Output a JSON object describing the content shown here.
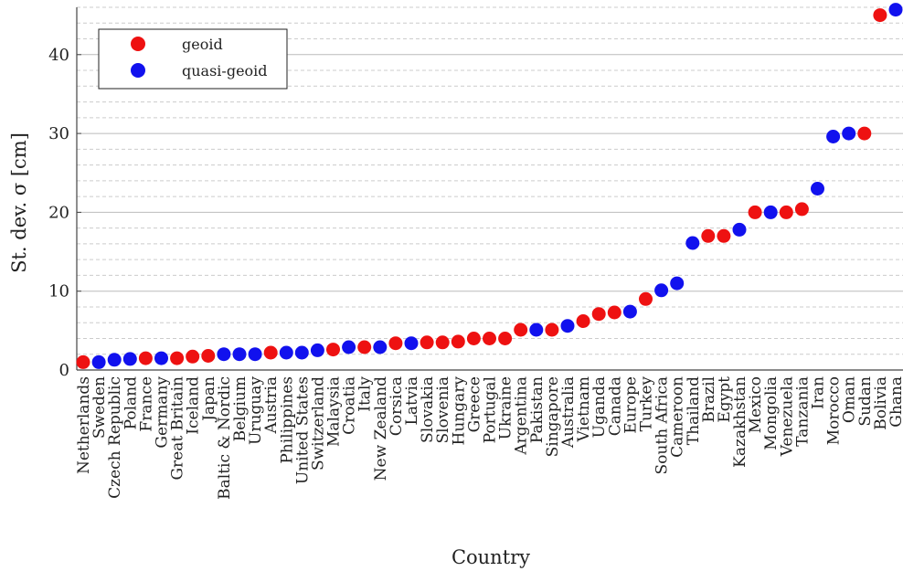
{
  "chart_data": {
    "type": "scatter",
    "xlabel": "Country",
    "ylabel": "St. dev. σ [cm]",
    "ylim": [
      0,
      46
    ],
    "yticks": [
      0,
      10,
      20,
      30,
      40
    ],
    "grid": "horizontal dashed minor, solid major",
    "legend_position": "top-left",
    "categories": [
      "Netherlands",
      "Sweden",
      "Czech Republic",
      "Poland",
      "France",
      "Germany",
      "Great Britain",
      "Iceland",
      "Japan",
      "Baltic & Nordic",
      "Belgium",
      "Uruguay",
      "Austria",
      "Philippines",
      "United States",
      "Switzerland",
      "Malaysia",
      "Croatia",
      "Italy",
      "New Zealand",
      "Corsica",
      "Latvia",
      "Slovakia",
      "Slovenia",
      "Hungary",
      "Greece",
      "Portugal",
      "Ukraine",
      "Argentina",
      "Pakistan",
      "Singapore",
      "Australia",
      "Vietnam",
      "Uganda",
      "Canada",
      "Europe",
      "Turkey",
      "South Africa",
      "Cameroon",
      "Thailand",
      "Brazil",
      "Egypt",
      "Kazakhstan",
      "Mexico",
      "Mongolia",
      "Venezuela",
      "Tanzania",
      "Iran",
      "Morocco",
      "Oman",
      "Sudan",
      "Bolivia",
      "Ghana"
    ],
    "values": [
      1.0,
      1.0,
      1.3,
      1.4,
      1.5,
      1.5,
      1.5,
      1.7,
      1.8,
      2.0,
      2.0,
      2.0,
      2.2,
      2.2,
      2.2,
      2.5,
      2.6,
      2.9,
      2.9,
      2.9,
      3.4,
      3.4,
      3.5,
      3.5,
      3.6,
      4.0,
      4.0,
      4.0,
      5.1,
      5.1,
      5.1,
      5.6,
      6.2,
      7.1,
      7.3,
      7.4,
      9.0,
      10.1,
      11.0,
      16.1,
      17.0,
      17.0,
      17.8,
      20.0,
      20.0,
      20.0,
      20.4,
      23.0,
      29.6,
      30.0,
      30.0,
      45.0,
      45.7
    ],
    "groups": [
      "geoid",
      "quasi-geoid",
      "quasi-geoid",
      "quasi-geoid",
      "geoid",
      "quasi-geoid",
      "geoid",
      "geoid",
      "geoid",
      "quasi-geoid",
      "quasi-geoid",
      "quasi-geoid",
      "geoid",
      "quasi-geoid",
      "quasi-geoid",
      "quasi-geoid",
      "geoid",
      "quasi-geoid",
      "geoid",
      "quasi-geoid",
      "geoid",
      "quasi-geoid",
      "geoid",
      "geoid",
      "geoid",
      "geoid",
      "geoid",
      "geoid",
      "geoid",
      "quasi-geoid",
      "geoid",
      "quasi-geoid",
      "geoid",
      "geoid",
      "geoid",
      "quasi-geoid",
      "geoid",
      "quasi-geoid",
      "quasi-geoid",
      "quasi-geoid",
      "geoid",
      "geoid",
      "quasi-geoid",
      "geoid",
      "quasi-geoid",
      "geoid",
      "geoid",
      "quasi-geoid",
      "quasi-geoid",
      "quasi-geoid",
      "geoid",
      "geoid",
      "quasi-geoid"
    ],
    "series": [
      {
        "name": "geoid",
        "color": "#ee1111"
      },
      {
        "name": "quasi-geoid",
        "color": "#1111ee"
      }
    ]
  },
  "colors": {
    "grid_major": "#bbbbbb",
    "grid_minor": "#cccccc",
    "axis": "#444444",
    "text": "#222222"
  }
}
